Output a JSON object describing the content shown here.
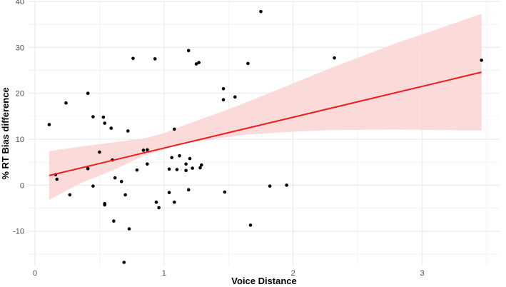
{
  "chart_data": {
    "type": "scatter",
    "title": "",
    "xlabel": "Voice Distance",
    "ylabel": "% RT Bias difference",
    "xlim": [
      -0.05,
      3.6
    ],
    "ylim": [
      -17.5,
      40.0
    ],
    "xticks": [
      0,
      1,
      2,
      3
    ],
    "yticks": [
      -10,
      0,
      10,
      20,
      30,
      40
    ],
    "grid": true,
    "legend": "none",
    "colors": {
      "points": "#000000",
      "line": "#ee1c1c",
      "ribbon": "#fbd6d6",
      "grid": "#ebebeb"
    },
    "points": [
      [
        0.11,
        13.2
      ],
      [
        0.16,
        2.3
      ],
      [
        0.17,
        1.3
      ],
      [
        0.24,
        17.9
      ],
      [
        0.27,
        -2.1
      ],
      [
        0.41,
        20.0
      ],
      [
        0.41,
        3.6
      ],
      [
        0.45,
        14.9
      ],
      [
        0.45,
        -0.2
      ],
      [
        0.5,
        7.2
      ],
      [
        0.53,
        14.8
      ],
      [
        0.54,
        13.5
      ],
      [
        0.54,
        -4.0
      ],
      [
        0.54,
        -4.3
      ],
      [
        0.59,
        12.4
      ],
      [
        0.6,
        5.5
      ],
      [
        0.61,
        -7.8
      ],
      [
        0.62,
        1.6
      ],
      [
        0.67,
        0.8
      ],
      [
        0.69,
        -16.8
      ],
      [
        0.7,
        -2.1
      ],
      [
        0.72,
        11.8
      ],
      [
        0.73,
        -9.5
      ],
      [
        0.76,
        27.6
      ],
      [
        0.79,
        3.3
      ],
      [
        0.84,
        7.6
      ],
      [
        0.87,
        7.7
      ],
      [
        0.87,
        4.6
      ],
      [
        0.93,
        27.5
      ],
      [
        0.94,
        -3.7
      ],
      [
        0.96,
        -4.9
      ],
      [
        1.04,
        -1.6
      ],
      [
        1.04,
        3.5
      ],
      [
        1.06,
        6.0
      ],
      [
        1.08,
        12.2
      ],
      [
        1.08,
        -3.7
      ],
      [
        1.1,
        3.4
      ],
      [
        1.12,
        6.4
      ],
      [
        1.17,
        3.2
      ],
      [
        1.17,
        4.6
      ],
      [
        1.19,
        29.3
      ],
      [
        1.19,
        -1.0
      ],
      [
        1.2,
        5.8
      ],
      [
        1.22,
        3.7
      ],
      [
        1.25,
        26.4
      ],
      [
        1.27,
        26.7
      ],
      [
        1.28,
        3.8
      ],
      [
        1.29,
        4.4
      ],
      [
        1.46,
        21.0
      ],
      [
        1.46,
        18.6
      ],
      [
        1.47,
        -1.5
      ],
      [
        1.55,
        19.2
      ],
      [
        1.65,
        26.5
      ],
      [
        1.67,
        -8.7
      ],
      [
        1.75,
        37.8
      ],
      [
        1.82,
        -0.2
      ],
      [
        1.95,
        0.0
      ],
      [
        2.32,
        27.7
      ],
      [
        3.46,
        27.2
      ]
    ],
    "fit_line": {
      "x": [
        0.11,
        3.46
      ],
      "y": [
        2.1,
        24.6
      ]
    },
    "confidence_band": {
      "x": [
        0.11,
        0.35,
        0.6,
        0.85,
        1.0,
        1.15,
        1.4,
        1.6,
        1.9,
        2.3,
        2.8,
        3.46
      ],
      "lower": [
        -3.2,
        0.4,
        3.2,
        6.5,
        7.8,
        9.1,
        10.1,
        10.9,
        11.5,
        12.0,
        12.1,
        11.9
      ],
      "upper": [
        7.4,
        8.4,
        9.3,
        10.2,
        11.3,
        13.0,
        15.5,
        17.6,
        21.0,
        25.6,
        30.9,
        37.3
      ]
    }
  }
}
